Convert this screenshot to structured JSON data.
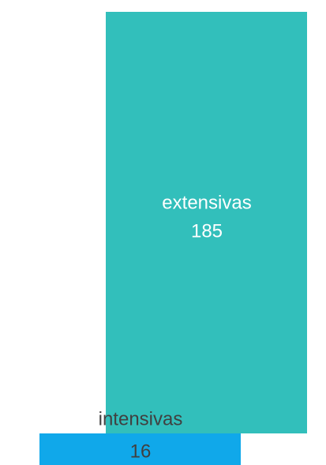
{
  "chart_data": {
    "type": "bar",
    "categories": [
      "extensivas",
      "intensivas"
    ],
    "values": [
      185,
      16
    ],
    "colors": [
      "#32bfbb",
      "#10a8ea"
    ]
  }
}
